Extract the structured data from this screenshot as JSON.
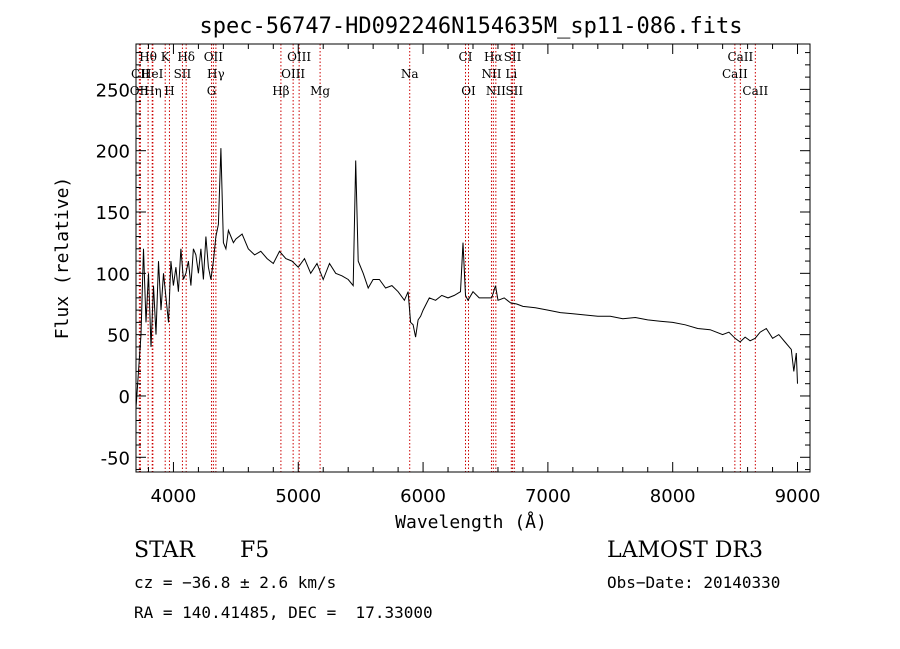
{
  "chart_data": {
    "type": "line",
    "title": "spec-56747-HD092246N154635M_sp11-086.fits",
    "xlabel": "Wavelength (Å)",
    "ylabel": "Flux (relative)",
    "xlim": [
      3700,
      9100
    ],
    "ylim": [
      -62,
      287
    ],
    "xticks": [
      4000,
      5000,
      6000,
      7000,
      8000,
      9000
    ],
    "xtick_labels": [
      "4000",
      "5000",
      "6000",
      "7000",
      "8000",
      "9000"
    ],
    "yticks": [
      -50,
      0,
      50,
      100,
      150,
      200,
      250
    ],
    "ytick_labels": [
      "-50",
      "0",
      "50",
      "100",
      "150",
      "200",
      "250"
    ],
    "series": [
      {
        "name": "spectrum",
        "x": [
          3700,
          3720,
          3740,
          3760,
          3780,
          3800,
          3820,
          3840,
          3860,
          3880,
          3900,
          3920,
          3940,
          3960,
          3980,
          4000,
          4020,
          4040,
          4060,
          4080,
          4100,
          4120,
          4140,
          4160,
          4180,
          4200,
          4220,
          4240,
          4260,
          4280,
          4300,
          4320,
          4340,
          4360,
          4380,
          4400,
          4420,
          4440,
          4460,
          4480,
          4500,
          4550,
          4600,
          4650,
          4700,
          4750,
          4800,
          4850,
          4900,
          4950,
          5000,
          5050,
          5100,
          5150,
          5200,
          5250,
          5300,
          5350,
          5400,
          5440,
          5460,
          5480,
          5520,
          5560,
          5600,
          5650,
          5700,
          5750,
          5800,
          5850,
          5880,
          5900,
          5920,
          5940,
          5960,
          5980,
          6000,
          6050,
          6100,
          6150,
          6200,
          6250,
          6300,
          6320,
          6340,
          6360,
          6400,
          6450,
          6500,
          6550,
          6580,
          6600,
          6650,
          6700,
          6750,
          6800,
          6900,
          7000,
          7100,
          7200,
          7300,
          7400,
          7500,
          7600,
          7700,
          7800,
          7900,
          8000,
          8100,
          8200,
          8300,
          8400,
          8450,
          8500,
          8540,
          8580,
          8620,
          8660,
          8700,
          8750,
          8800,
          8850,
          8900,
          8950,
          8970,
          8990,
          9000
        ],
        "y": [
          -10,
          20,
          50,
          120,
          60,
          100,
          40,
          90,
          50,
          110,
          70,
          100,
          80,
          60,
          110,
          90,
          105,
          85,
          120,
          95,
          100,
          110,
          90,
          120,
          115,
          100,
          120,
          95,
          130,
          105,
          95,
          110,
          130,
          140,
          202,
          125,
          120,
          135,
          130,
          125,
          128,
          132,
          120,
          115,
          118,
          112,
          108,
          118,
          112,
          110,
          105,
          112,
          100,
          108,
          95,
          108,
          100,
          98,
          95,
          90,
          192,
          110,
          100,
          88,
          95,
          95,
          88,
          90,
          85,
          78,
          85,
          60,
          58,
          48,
          62,
          65,
          70,
          80,
          78,
          82,
          80,
          82,
          85,
          125,
          82,
          78,
          85,
          80,
          80,
          80,
          90,
          78,
          80,
          76,
          75,
          73,
          72,
          70,
          68,
          67,
          66,
          65,
          65,
          63,
          64,
          62,
          61,
          60,
          58,
          55,
          54,
          50,
          52,
          47,
          44,
          48,
          45,
          47,
          52,
          55,
          47,
          50,
          44,
          38,
          20,
          35,
          10
        ]
      }
    ],
    "spectral_lines": [
      {
        "label": "Hθ",
        "x": 3797,
        "row": 0
      },
      {
        "label": "K",
        "x": 3934,
        "row": 0
      },
      {
        "label": "Hδ",
        "x": 4102,
        "row": 0
      },
      {
        "label": "OII",
        "x": 4320,
        "row": 0
      },
      {
        "label": "OIII",
        "x": 5007,
        "row": 0
      },
      {
        "label": "CI",
        "x": 6340,
        "row": 0
      },
      {
        "label": "Hα",
        "x": 6563,
        "row": 0
      },
      {
        "label": "SII",
        "x": 6717,
        "row": 0
      },
      {
        "label": "CaII",
        "x": 8542,
        "row": 0
      },
      {
        "label": "CII",
        "x": 3735,
        "row": 1
      },
      {
        "label": "HeI",
        "x": 3830,
        "row": 1
      },
      {
        "label": "SII",
        "x": 4072,
        "row": 1
      },
      {
        "label": "Hγ",
        "x": 4340,
        "row": 1
      },
      {
        "label": "OIII",
        "x": 4959,
        "row": 1
      },
      {
        "label": "Na",
        "x": 5893,
        "row": 1
      },
      {
        "label": "NII",
        "x": 6548,
        "row": 1
      },
      {
        "label": "Li",
        "x": 6707,
        "row": 1
      },
      {
        "label": "CaII",
        "x": 8498,
        "row": 1
      },
      {
        "label": "OII",
        "x": 3727,
        "row": 2
      },
      {
        "label": "Hη",
        "x": 3835,
        "row": 2
      },
      {
        "label": "H",
        "x": 3968,
        "row": 2
      },
      {
        "label": "G",
        "x": 4305,
        "row": 2
      },
      {
        "label": "Hβ",
        "x": 4861,
        "row": 2
      },
      {
        "label": "Mg",
        "x": 5175,
        "row": 2
      },
      {
        "label": "OI",
        "x": 6364,
        "row": 2
      },
      {
        "label": "NII",
        "x": 6583,
        "row": 2
      },
      {
        "label": "SII",
        "x": 6731,
        "row": 2
      },
      {
        "label": "CaII",
        "x": 8662,
        "row": 2
      }
    ]
  },
  "info": {
    "object_class": "STAR",
    "subclass": "F5",
    "survey": "LAMOST DR3",
    "redshift": "cz = −36.8 ± 2.6 km/s",
    "obs_date": "Obs−Date: 20140330",
    "coords": "RA = 140.41485, DEC =  17.33000"
  },
  "colors": {
    "line": "#000000",
    "marker": "#cc0000"
  }
}
